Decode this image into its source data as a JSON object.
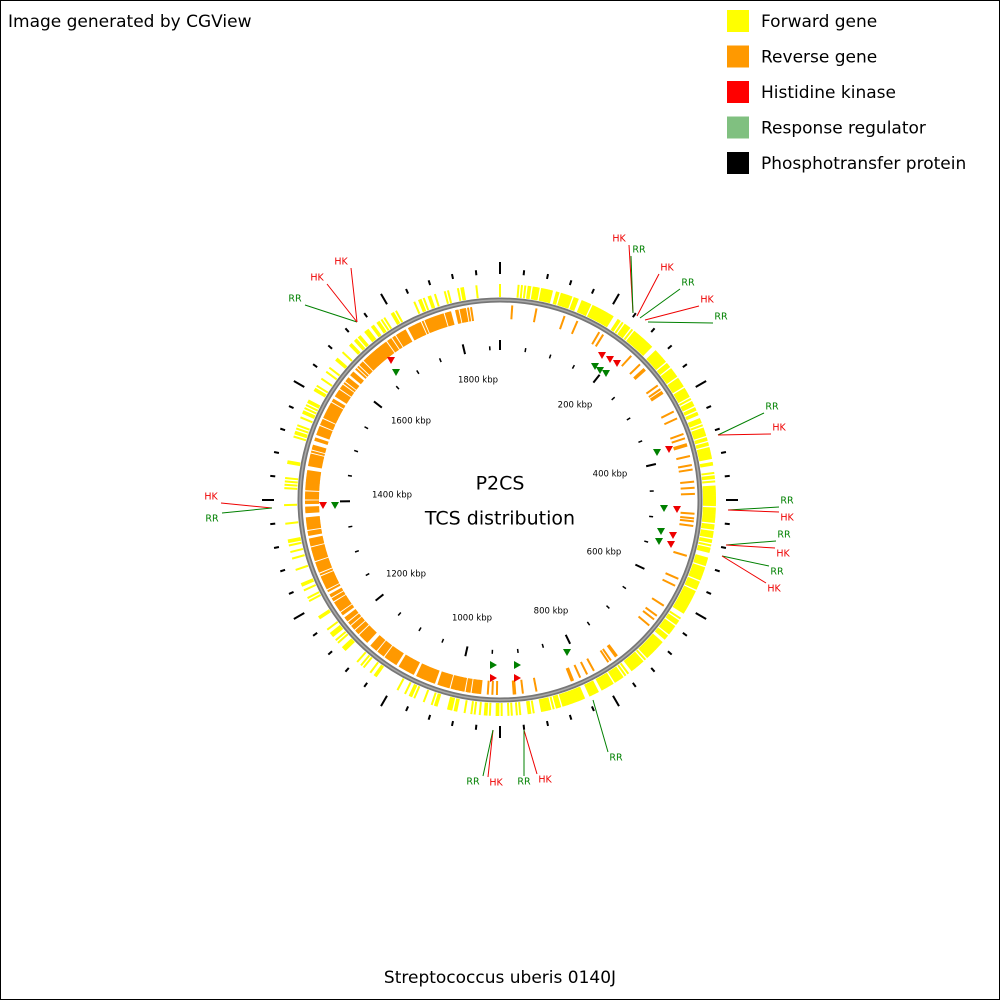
{
  "header": {
    "credit": "Image generated by CGView"
  },
  "legend": {
    "items": [
      {
        "label": "Forward gene",
        "color": "#ffff00"
      },
      {
        "label": "Reverse gene",
        "color": "#ff9900"
      },
      {
        "label": "Histidine kinase",
        "color": "#ff0000"
      },
      {
        "label": "Response regulator",
        "color": "#80c080"
      },
      {
        "label": "Phosphotransfer protein",
        "color": "#000000"
      }
    ]
  },
  "center": {
    "title": "P2CS",
    "subtitle": "TCS distribution"
  },
  "scale_labels": [
    "200 kbp",
    "400 kbp",
    "600 kbp",
    "800 kbp",
    "1000 kbp",
    "1200 kbp",
    "1400 kbp",
    "1600 kbp",
    "1800 kbp"
  ],
  "features": [
    {
      "label": "HK"
    },
    {
      "label": "RR"
    },
    {
      "label": "HK"
    },
    {
      "label": "RR"
    },
    {
      "label": "HK"
    },
    {
      "label": "RR"
    },
    {
      "label": "RR"
    },
    {
      "label": "HK"
    },
    {
      "label": "RR"
    },
    {
      "label": "HK"
    },
    {
      "label": "RR"
    },
    {
      "label": "HK"
    },
    {
      "label": "RR"
    },
    {
      "label": "HK"
    },
    {
      "label": "RR"
    },
    {
      "label": "HK"
    },
    {
      "label": "RR"
    },
    {
      "label": "HK"
    },
    {
      "label": "RR"
    },
    {
      "label": "HK"
    },
    {
      "label": "RR"
    },
    {
      "label": "RR"
    },
    {
      "label": "HK"
    },
    {
      "label": "HK"
    }
  ],
  "footer": {
    "organism": "Streptococcus uberis 0140J"
  }
}
